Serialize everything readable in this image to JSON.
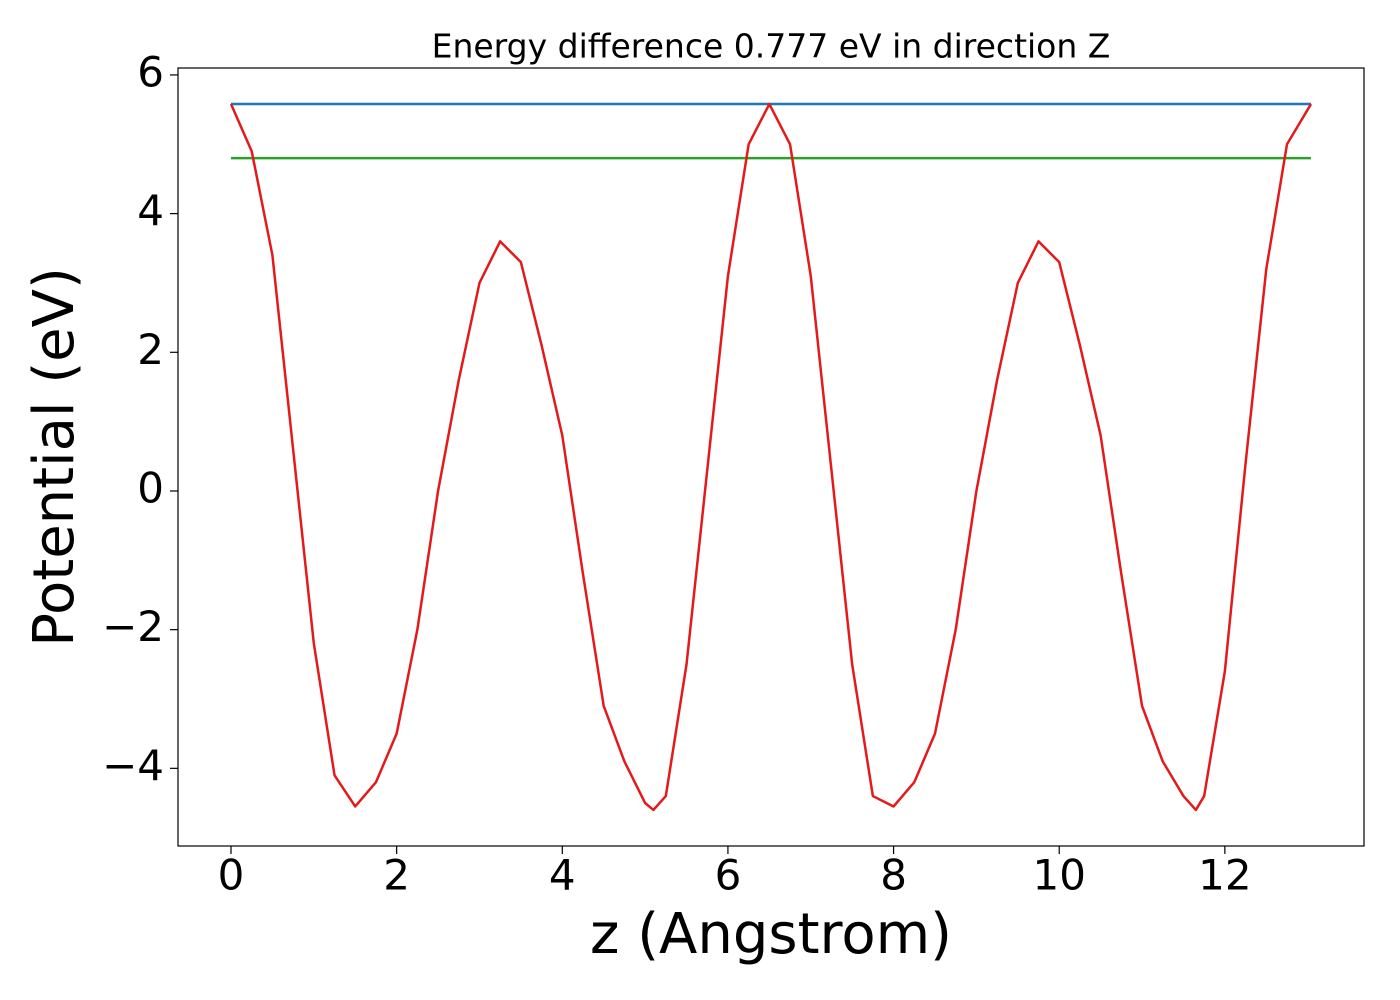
{
  "chart_data": {
    "type": "line",
    "title": "Energy difference 0.777 eV in direction Z",
    "xlabel": "z (Angstrom)",
    "ylabel": "Potential (eV)",
    "xlim": [
      -0.64,
      13.68
    ],
    "ylim": [
      -5.12,
      6.1
    ],
    "xticks": [
      0,
      2,
      4,
      6,
      8,
      10,
      12
    ],
    "yticks": [
      {
        "value": -4,
        "label": "−4"
      },
      {
        "value": -2,
        "label": "−2"
      },
      0,
      2,
      4,
      6
    ],
    "series": [
      {
        "color": "#1f77b4",
        "x": [
          0,
          13.04
        ],
        "values": [
          5.58,
          5.58
        ]
      },
      {
        "color": "#2ca02c",
        "x": [
          0,
          13.04
        ],
        "values": [
          4.8,
          4.8
        ]
      },
      {
        "color": "#e31a1c",
        "x": [
          0,
          0.25,
          0.5,
          0.75,
          1.0,
          1.25,
          1.5,
          1.75,
          2.0,
          2.25,
          2.5,
          2.75,
          3.0,
          3.25,
          3.5,
          3.75,
          4.0,
          4.25,
          4.5,
          4.75,
          5.0,
          5.1,
          5.25,
          5.5,
          5.75,
          6.0,
          6.25,
          6.5,
          6.75,
          7.0,
          7.25,
          7.5,
          7.75,
          8.0,
          8.25,
          8.5,
          8.75,
          9.0,
          9.25,
          9.5,
          9.75,
          10.0,
          10.25,
          10.5,
          10.75,
          11.0,
          11.25,
          11.5,
          11.65,
          11.75,
          12.0,
          12.25,
          12.5,
          12.75,
          13.04
        ],
        "values": [
          5.58,
          4.9,
          3.4,
          0.6,
          -2.2,
          -4.1,
          -4.55,
          -4.2,
          -3.5,
          -2.0,
          0.0,
          1.6,
          3.0,
          3.6,
          3.3,
          2.1,
          0.8,
          -1.2,
          -3.1,
          -3.9,
          -4.5,
          -4.6,
          -4.4,
          -2.5,
          0.3,
          3.1,
          5.0,
          5.58,
          5.0,
          3.1,
          0.3,
          -2.5,
          -4.4,
          -4.55,
          -4.2,
          -3.5,
          -2.0,
          0.0,
          1.6,
          3.0,
          3.6,
          3.3,
          2.1,
          0.8,
          -1.2,
          -3.1,
          -3.9,
          -4.4,
          -4.6,
          -4.4,
          -2.6,
          0.4,
          3.2,
          5.0,
          5.58
        ]
      }
    ]
  }
}
